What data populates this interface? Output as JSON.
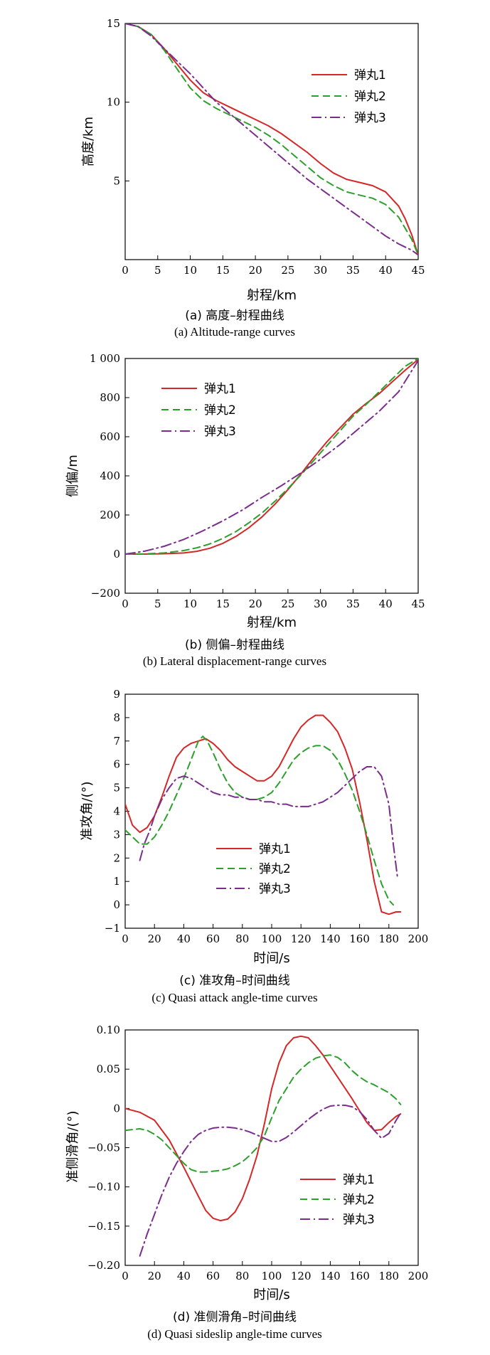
{
  "chart_data": [
    {
      "type": "line",
      "xlabel": "射程/km",
      "ylabel": "高度/km",
      "xlim": [
        0,
        45
      ],
      "ylim": [
        0,
        15
      ],
      "xticks": [
        0,
        5,
        10,
        15,
        20,
        25,
        30,
        35,
        40,
        45
      ],
      "yticks": [
        5,
        10,
        15
      ],
      "grid": false,
      "legend_position": "upper-right",
      "caption_cn": "(a) 高度–射程曲线",
      "caption_en": "(a) Altitude-range curves",
      "series": [
        {
          "name": "弹丸1",
          "color": "#d62728",
          "style": "solid",
          "x": [
            0,
            2,
            4,
            6,
            8,
            10,
            12,
            14,
            16,
            18,
            20,
            22,
            24,
            26,
            28,
            30,
            32,
            34,
            36,
            38,
            40,
            42,
            43,
            44,
            45
          ],
          "y": [
            15,
            14.8,
            14.3,
            13.4,
            12.4,
            11.4,
            10.6,
            10.1,
            9.7,
            9.3,
            8.9,
            8.5,
            8.0,
            7.4,
            6.8,
            6.1,
            5.5,
            5.1,
            4.9,
            4.7,
            4.3,
            3.4,
            2.6,
            1.6,
            0.3
          ]
        },
        {
          "name": "弹丸2",
          "color": "#2ca02c",
          "style": "dashed",
          "x": [
            0,
            2,
            4,
            6,
            8,
            10,
            12,
            14,
            16,
            18,
            20,
            22,
            24,
            26,
            28,
            30,
            32,
            34,
            36,
            38,
            40,
            42,
            44,
            45
          ],
          "y": [
            15,
            14.8,
            14.3,
            13.3,
            12.1,
            10.9,
            10.1,
            9.6,
            9.2,
            8.8,
            8.4,
            7.9,
            7.3,
            6.6,
            5.9,
            5.2,
            4.7,
            4.3,
            4.1,
            3.9,
            3.5,
            2.7,
            1.3,
            0.3
          ]
        },
        {
          "name": "弹丸3",
          "color": "#7b2d8e",
          "style": "dashdot",
          "x": [
            0,
            2,
            4,
            6,
            8,
            10,
            12,
            14,
            16,
            18,
            20,
            22,
            24,
            26,
            28,
            30,
            32,
            34,
            36,
            38,
            40,
            42,
            44,
            45
          ],
          "y": [
            15,
            14.8,
            14.2,
            13.4,
            12.6,
            11.8,
            10.9,
            10.0,
            9.3,
            8.6,
            7.9,
            7.2,
            6.5,
            5.8,
            5.1,
            4.5,
            3.9,
            3.3,
            2.7,
            2.1,
            1.5,
            1.0,
            0.6,
            0.3
          ]
        }
      ]
    },
    {
      "type": "line",
      "xlabel": "射程/km",
      "ylabel": "侧偏/m",
      "xlim": [
        0,
        45
      ],
      "ylim": [
        -200,
        1000
      ],
      "xticks": [
        0,
        5,
        10,
        15,
        20,
        25,
        30,
        35,
        40,
        45
      ],
      "yticks": [
        -200,
        0,
        200,
        400,
        600,
        800,
        1000
      ],
      "ytick_labels": [
        "−200",
        "0",
        "200",
        "400",
        "600",
        "800",
        "1 000"
      ],
      "grid": false,
      "legend_position": "upper-left",
      "caption_cn": "(b) 侧偏–射程曲线",
      "caption_en": "(b) Lateral displacement-range curves",
      "series": [
        {
          "name": "弹丸1",
          "color": "#d62728",
          "style": "solid",
          "x": [
            0,
            3,
            6,
            9,
            11,
            13,
            15,
            17,
            19,
            21,
            23,
            25,
            27,
            29,
            31,
            33,
            35,
            37,
            39,
            41,
            43,
            45
          ],
          "y": [
            0,
            0,
            2,
            6,
            14,
            30,
            55,
            90,
            135,
            190,
            255,
            330,
            410,
            495,
            575,
            645,
            715,
            770,
            820,
            880,
            940,
            995
          ]
        },
        {
          "name": "弹丸2",
          "color": "#2ca02c",
          "style": "dashed",
          "x": [
            0,
            3,
            6,
            9,
            11,
            13,
            15,
            17,
            19,
            21,
            23,
            25,
            27,
            29,
            31,
            33,
            35,
            37,
            39,
            41,
            43,
            45
          ],
          "y": [
            0,
            1,
            6,
            18,
            32,
            52,
            80,
            115,
            160,
            210,
            270,
            335,
            405,
            480,
            555,
            630,
            705,
            765,
            830,
            895,
            960,
            1000
          ]
        },
        {
          "name": "弹丸3",
          "color": "#7b2d8e",
          "style": "dashdot",
          "x": [
            0,
            3,
            6,
            9,
            12,
            15,
            18,
            21,
            24,
            27,
            30,
            33,
            36,
            39,
            42,
            45
          ],
          "y": [
            0,
            15,
            40,
            75,
            120,
            170,
            225,
            290,
            350,
            415,
            485,
            560,
            645,
            730,
            830,
            990
          ]
        }
      ]
    },
    {
      "type": "line",
      "xlabel": "时间/s",
      "ylabel": "准攻角/(°)",
      "xlim": [
        0,
        200
      ],
      "ylim": [
        -1,
        9
      ],
      "xticks": [
        0,
        20,
        40,
        60,
        80,
        100,
        120,
        140,
        160,
        180,
        200
      ],
      "yticks": [
        -1,
        0,
        1,
        2,
        3,
        4,
        5,
        6,
        7,
        8,
        9
      ],
      "ytick_labels": [
        "−1",
        "0",
        "1",
        "2",
        "3",
        "4",
        "5",
        "6",
        "7",
        "8",
        "9"
      ],
      "grid": false,
      "legend_position": "lower-center",
      "caption_cn": "(c) 准攻角–时间曲线",
      "caption_en": "(c) Quasi attack angle-time curves",
      "series": [
        {
          "name": "弹丸1",
          "color": "#d62728",
          "style": "solid",
          "x": [
            0,
            5,
            10,
            15,
            20,
            25,
            30,
            35,
            40,
            45,
            50,
            55,
            60,
            65,
            70,
            75,
            80,
            85,
            90,
            95,
            100,
            105,
            110,
            115,
            120,
            125,
            130,
            135,
            140,
            145,
            150,
            155,
            160,
            165,
            170,
            175,
            180,
            185,
            188
          ],
          "y": [
            4.3,
            3.4,
            3.1,
            3.3,
            3.8,
            4.6,
            5.5,
            6.3,
            6.7,
            6.9,
            7.0,
            7.1,
            6.9,
            6.6,
            6.2,
            5.9,
            5.7,
            5.5,
            5.3,
            5.3,
            5.5,
            5.9,
            6.5,
            7.1,
            7.6,
            7.9,
            8.1,
            8.1,
            7.8,
            7.4,
            6.7,
            5.8,
            4.4,
            2.8,
            1.0,
            -0.3,
            -0.4,
            -0.3,
            -0.3
          ]
        },
        {
          "name": "弹丸2",
          "color": "#2ca02c",
          "style": "dashed",
          "x": [
            0,
            5,
            10,
            15,
            20,
            25,
            30,
            35,
            40,
            45,
            50,
            53,
            56,
            60,
            65,
            70,
            75,
            80,
            85,
            90,
            95,
            100,
            105,
            110,
            115,
            120,
            125,
            130,
            135,
            140,
            145,
            150,
            155,
            160,
            165,
            170,
            175,
            180,
            183
          ],
          "y": [
            3.2,
            2.9,
            2.6,
            2.6,
            2.9,
            3.4,
            4.0,
            4.7,
            5.4,
            6.2,
            7.0,
            7.2,
            7.0,
            6.5,
            5.8,
            5.2,
            4.8,
            4.6,
            4.5,
            4.5,
            4.6,
            4.8,
            5.2,
            5.7,
            6.2,
            6.5,
            6.7,
            6.8,
            6.8,
            6.6,
            6.2,
            5.6,
            4.9,
            4.0,
            3.0,
            1.9,
            0.9,
            0.2,
            0.0
          ]
        },
        {
          "name": "弹丸3",
          "color": "#7b2d8e",
          "style": "dashdot",
          "x": [
            10,
            13,
            17,
            20,
            25,
            30,
            35,
            40,
            45,
            50,
            55,
            60,
            65,
            70,
            75,
            80,
            85,
            90,
            95,
            100,
            105,
            110,
            115,
            120,
            125,
            130,
            135,
            140,
            145,
            150,
            155,
            160,
            165,
            170,
            175,
            180,
            183,
            186
          ],
          "y": [
            1.9,
            2.6,
            3.2,
            3.8,
            4.5,
            5.0,
            5.4,
            5.5,
            5.4,
            5.2,
            5.0,
            4.8,
            4.7,
            4.7,
            4.6,
            4.6,
            4.5,
            4.5,
            4.4,
            4.4,
            4.3,
            4.3,
            4.2,
            4.2,
            4.2,
            4.3,
            4.4,
            4.6,
            4.8,
            5.1,
            5.4,
            5.7,
            5.9,
            5.9,
            5.5,
            4.3,
            2.6,
            1.1
          ]
        }
      ]
    },
    {
      "type": "line",
      "xlabel": "时间/s",
      "ylabel": "准侧滑角/(°)",
      "xlim": [
        0,
        200
      ],
      "ylim": [
        -0.2,
        0.1
      ],
      "xticks": [
        0,
        20,
        40,
        60,
        80,
        100,
        120,
        140,
        160,
        180,
        200
      ],
      "yticks": [
        -0.2,
        -0.15,
        -0.1,
        -0.05,
        0,
        0.05,
        0.1
      ],
      "ytick_labels": [
        "−0.20",
        "−0.15",
        "−0.10",
        "−0.05",
        "0",
        "0.05",
        "0.10"
      ],
      "grid": false,
      "legend_position": "lower-right",
      "caption_cn": "(d) 准侧滑角–时间曲线",
      "caption_en": "(d) Quasi sideslip angle-time curves",
      "series": [
        {
          "name": "弹丸1",
          "color": "#d62728",
          "style": "solid",
          "x": [
            0,
            10,
            20,
            30,
            40,
            50,
            55,
            60,
            65,
            70,
            75,
            80,
            85,
            90,
            95,
            100,
            105,
            110,
            115,
            120,
            125,
            130,
            135,
            140,
            145,
            150,
            155,
            160,
            165,
            170,
            175,
            180,
            185,
            188
          ],
          "y": [
            0.0,
            -0.005,
            -0.015,
            -0.04,
            -0.075,
            -0.112,
            -0.13,
            -0.14,
            -0.143,
            -0.141,
            -0.132,
            -0.115,
            -0.09,
            -0.06,
            -0.02,
            0.025,
            0.058,
            0.08,
            0.09,
            0.092,
            0.09,
            0.08,
            0.068,
            0.054,
            0.04,
            0.026,
            0.012,
            -0.003,
            -0.018,
            -0.028,
            -0.027,
            -0.018,
            -0.01,
            -0.007
          ]
        },
        {
          "name": "弹丸2",
          "color": "#2ca02c",
          "style": "dashed",
          "x": [
            0,
            5,
            10,
            15,
            20,
            25,
            30,
            35,
            40,
            45,
            50,
            55,
            60,
            65,
            70,
            75,
            80,
            85,
            90,
            95,
            100,
            105,
            110,
            115,
            120,
            125,
            130,
            135,
            140,
            145,
            150,
            155,
            160,
            165,
            170,
            175,
            180,
            185,
            188
          ],
          "y": [
            -0.028,
            -0.027,
            -0.026,
            -0.028,
            -0.033,
            -0.04,
            -0.05,
            -0.06,
            -0.07,
            -0.078,
            -0.081,
            -0.081,
            -0.08,
            -0.079,
            -0.077,
            -0.073,
            -0.068,
            -0.06,
            -0.05,
            -0.035,
            -0.012,
            0.01,
            0.025,
            0.04,
            0.05,
            0.058,
            0.064,
            0.067,
            0.068,
            0.065,
            0.058,
            0.048,
            0.04,
            0.034,
            0.03,
            0.025,
            0.02,
            0.012,
            0.005
          ]
        },
        {
          "name": "弹丸3",
          "color": "#7b2d8e",
          "style": "dashdot",
          "x": [
            10,
            15,
            20,
            25,
            30,
            35,
            40,
            45,
            50,
            55,
            60,
            65,
            70,
            75,
            80,
            85,
            90,
            95,
            100,
            105,
            110,
            115,
            120,
            125,
            130,
            135,
            140,
            145,
            150,
            155,
            160,
            165,
            170,
            175,
            180,
            185,
            188
          ],
          "y": [
            -0.188,
            -0.16,
            -0.135,
            -0.11,
            -0.088,
            -0.07,
            -0.055,
            -0.042,
            -0.033,
            -0.028,
            -0.025,
            -0.024,
            -0.024,
            -0.025,
            -0.027,
            -0.03,
            -0.034,
            -0.038,
            -0.042,
            -0.042,
            -0.037,
            -0.03,
            -0.022,
            -0.014,
            -0.007,
            -0.001,
            0.003,
            0.004,
            0.004,
            0.002,
            -0.004,
            -0.014,
            -0.028,
            -0.038,
            -0.032,
            -0.015,
            -0.006
          ]
        }
      ]
    }
  ]
}
